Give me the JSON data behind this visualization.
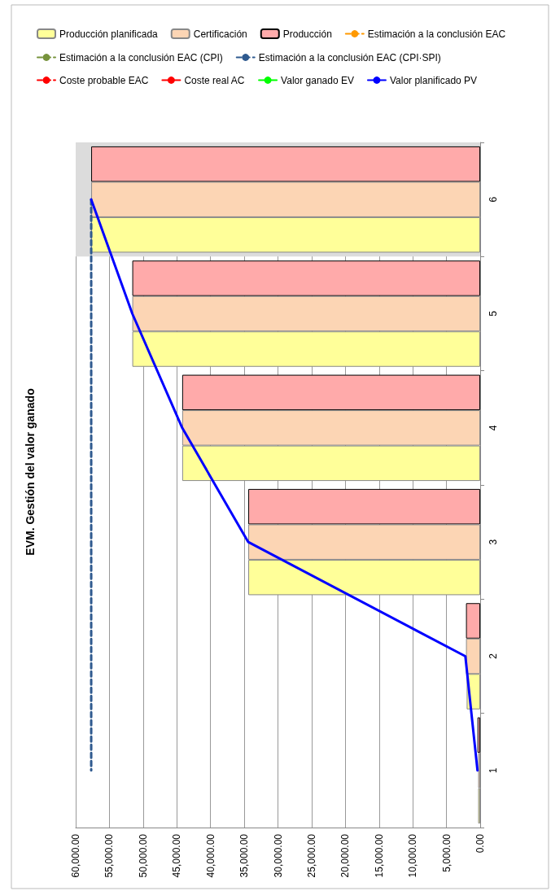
{
  "chart_data": {
    "type": "bar",
    "orientation": "horizontal",
    "title": "EVM. Gestión del valor ganado",
    "categories": [
      "6",
      "5",
      "4",
      "3",
      "2",
      "1"
    ],
    "series": [
      {
        "name": "Producción planificada",
        "color": "#ffff99",
        "values": [
          57700,
          51600,
          44200,
          34400,
          2000,
          300
        ]
      },
      {
        "name": "Certificación",
        "color": "#fcd5b4",
        "values": [
          57700,
          51600,
          44200,
          34400,
          2100,
          300
        ]
      },
      {
        "name": "Producción",
        "color": "#ffaaaa",
        "values": [
          57700,
          51600,
          44200,
          34400,
          2100,
          400
        ]
      },
      {
        "name": "Estimación a la conclusión EAC",
        "type": "line",
        "line_style": "dashed",
        "color": "#ff9900",
        "values": [
          null,
          null,
          null,
          null,
          null,
          null
        ]
      },
      {
        "name": "Estimación a la conclusión EAC (CPI)",
        "type": "line",
        "line_style": "dashed",
        "color": "#77933c",
        "values": [
          null,
          null,
          null,
          null,
          null,
          null
        ]
      },
      {
        "name": "Estimación a la conclusión EAC (CPI·SPI)",
        "type": "line",
        "line_style": "dashed",
        "color": "#2f5a8f",
        "values": [
          57700,
          57700,
          57700,
          57700,
          57700,
          57700
        ]
      },
      {
        "name": "Coste probable EAC",
        "type": "line",
        "line_style": "dashed",
        "color": "#ff0000",
        "values": [
          null,
          null,
          null,
          null,
          null,
          null
        ]
      },
      {
        "name": "Coste real AC",
        "type": "line",
        "line_style": "solid",
        "color": "#ff0000",
        "values": [
          null,
          null,
          null,
          null,
          null,
          null
        ]
      },
      {
        "name": "Valor ganado EV",
        "type": "line",
        "line_style": "solid",
        "color": "#00ff00",
        "values": [
          null,
          null,
          null,
          null,
          null,
          null
        ]
      },
      {
        "name": "Valor planificado PV",
        "type": "line",
        "line_style": "solid",
        "color": "#0000ff",
        "values": [
          57700,
          51600,
          44200,
          34400,
          2200,
          400
        ]
      }
    ],
    "xlim": [
      60000,
      0
    ],
    "xticks": [
      {
        "value": 60000,
        "label": "60,000.00"
      },
      {
        "value": 55000,
        "label": "55,000.00"
      },
      {
        "value": 50000,
        "label": "50,000.00"
      },
      {
        "value": 45000,
        "label": "45,000.00"
      },
      {
        "value": 40000,
        "label": "40,000.00"
      },
      {
        "value": 35000,
        "label": "35,000.00"
      },
      {
        "value": 30000,
        "label": "30,000.00"
      },
      {
        "value": 25000,
        "label": "25,000.00"
      },
      {
        "value": 20000,
        "label": "20,000.00"
      },
      {
        "value": 15000,
        "label": "15,000.00"
      },
      {
        "value": 10000,
        "label": "10,000.00"
      },
      {
        "value": 5000,
        "label": "5,000.00"
      },
      {
        "value": 0,
        "label": "0.00"
      }
    ],
    "bands": [
      {
        "axis": "y",
        "from": "6",
        "to": "6",
        "color": "#dcdcdc"
      }
    ],
    "grid": "x",
    "legend": "top",
    "marker": "none"
  }
}
